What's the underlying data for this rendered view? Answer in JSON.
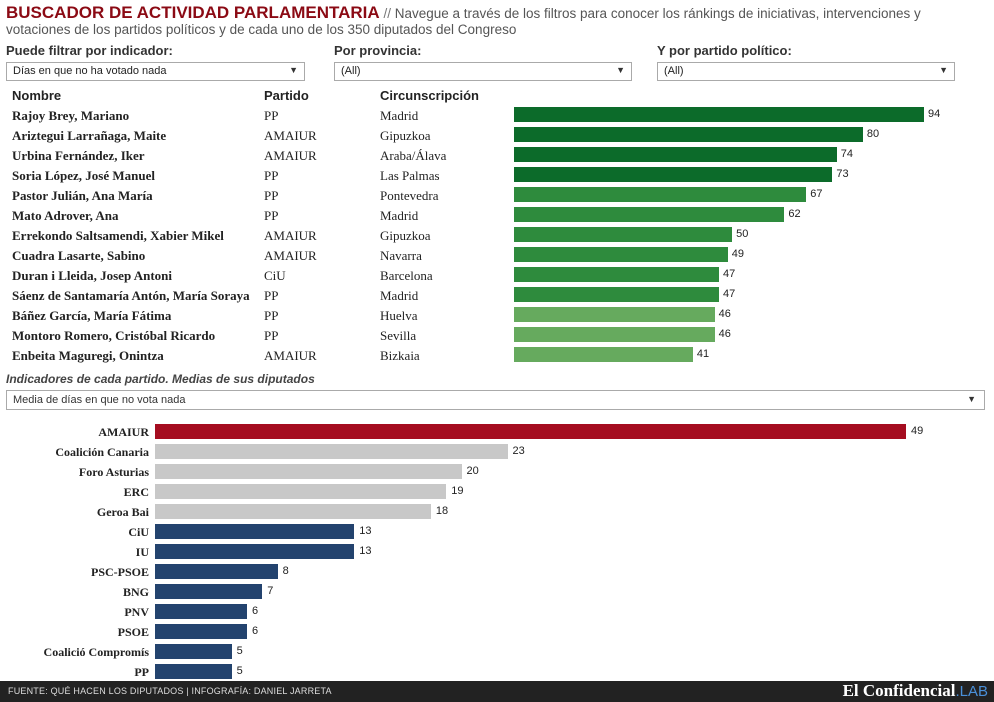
{
  "header": {
    "title": "BUSCADOR DE ACTIVIDAD PARLAMENTARIA",
    "separator": " // ",
    "description": "Navegue a través de los filtros para conocer los ránkings de iniciativas, intervenciones y votaciones de los partidos políticos y de cada uno de los 350 diputados del Congreso"
  },
  "filters": {
    "indicator_label": "Puede filtrar por indicador:",
    "indicator_value": "Días en que no ha votado nada",
    "province_label": "Por provincia:",
    "province_value": "(All)",
    "party_label": "Y por partido político:",
    "party_value": "(All)"
  },
  "columns": {
    "name": "Nombre",
    "party": "Partido",
    "district": "Circunscripción"
  },
  "section2": {
    "subtitle": "Indicadores de cada partido. Medias de sus diputados",
    "select_value": "Media de días en que no vota nada"
  },
  "footer": {
    "source": "FUENTE: QUÉ HACEN LOS DIPUTADOS | INFOGRAFÍA: DANIEL JARRETA",
    "brand": "El Confidencial",
    "brand_lab": ".LAB"
  },
  "chart_data": [
    {
      "type": "bar",
      "orientation": "horizontal",
      "categories": [
        "Rajoy Brey, Mariano",
        "Ariztegui Larrañaga, Maite",
        "Urbina Fernández, Iker",
        "Soria López, José Manuel",
        "Pastor Julián, Ana María",
        "Mato Adrover, Ana",
        "Errekondo Saltsamendi, Xabier Mikel",
        "Cuadra Lasarte, Sabino",
        "Duran i Lleida, Josep Antoni",
        "Sáenz de Santamaría Antón, María Soraya",
        "Báñez García, María Fátima",
        "Montoro Romero, Cristóbal Ricardo",
        "Enbeita Maguregi, Onintza"
      ],
      "parties": [
        "PP",
        "AMAIUR",
        "AMAIUR",
        "PP",
        "PP",
        "PP",
        "AMAIUR",
        "AMAIUR",
        "CiU",
        "PP",
        "PP",
        "PP",
        "AMAIUR"
      ],
      "districts": [
        "Madrid",
        "Gipuzkoa",
        "Araba/Álava",
        "Las Palmas",
        "Pontevedra",
        "Madrid",
        "Gipuzkoa",
        "Navarra",
        "Barcelona",
        "Madrid",
        "Huelva",
        "Sevilla",
        "Bizkaia"
      ],
      "values": [
        94,
        80,
        74,
        73,
        67,
        62,
        50,
        49,
        47,
        47,
        46,
        46,
        41
      ],
      "colors": [
        "#0c6b2a",
        "#0c6b2a",
        "#0c6b2a",
        "#0c6b2a",
        "#2e8b3d",
        "#2e8b3d",
        "#2e8b3d",
        "#2e8b3d",
        "#2e8b3d",
        "#2e8b3d",
        "#66aa5e",
        "#66aa5e",
        "#66aa5e"
      ]
    },
    {
      "type": "bar",
      "orientation": "horizontal",
      "categories": [
        "AMAIUR",
        "Coalición Canaria",
        "Foro Asturias",
        "ERC",
        "Geroa Bai",
        "CiU",
        "IU",
        "PSC-PSOE",
        "BNG",
        "PNV",
        "PSOE",
        "Coalició Compromís",
        "PP"
      ],
      "values": [
        49,
        23,
        20,
        19,
        18,
        13,
        13,
        8,
        7,
        6,
        6,
        5,
        5
      ],
      "colors": [
        "#a50d20",
        "#c8c8c8",
        "#c8c8c8",
        "#c8c8c8",
        "#c8c8c8",
        "#23436e",
        "#23436e",
        "#23436e",
        "#23436e",
        "#23436e",
        "#23436e",
        "#23436e",
        "#23436e"
      ]
    }
  ]
}
